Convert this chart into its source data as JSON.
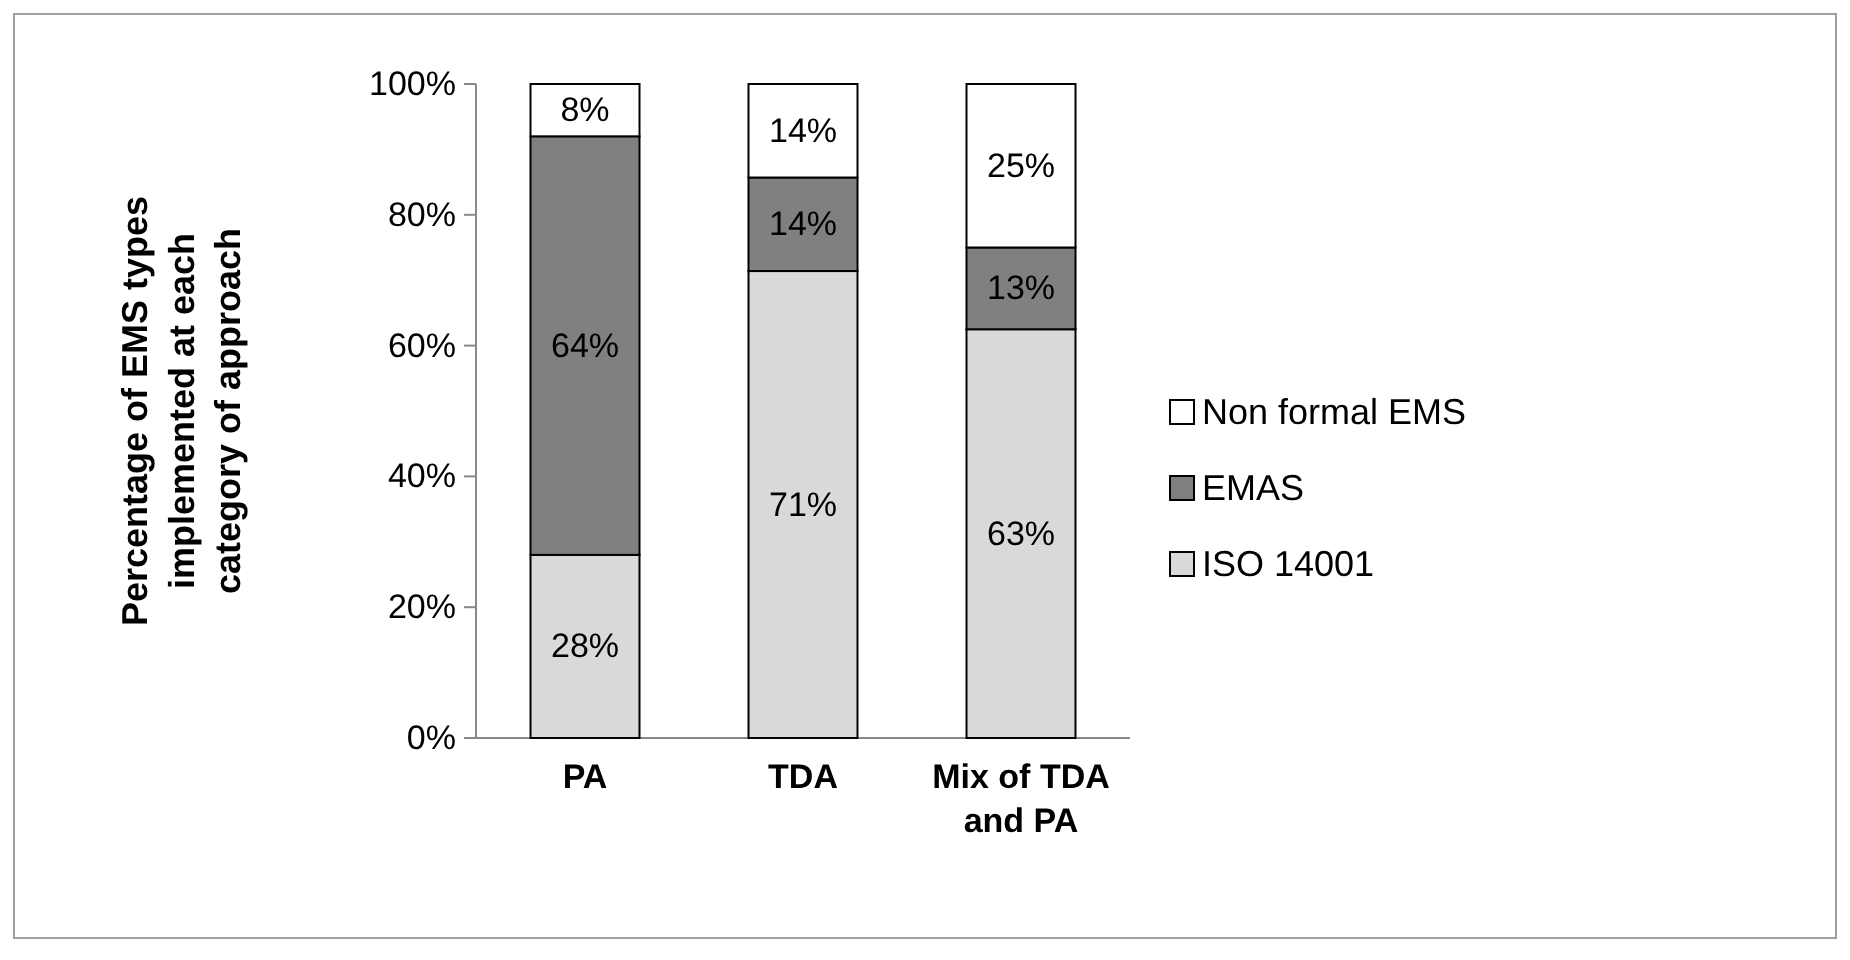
{
  "chart_data": {
    "type": "bar",
    "stacked": true,
    "ylabel": "Percentage of EMS types implemented at each category of approach",
    "categories": [
      "PA",
      "TDA",
      "Mix of TDA and PA"
    ],
    "series": [
      {
        "name": "ISO 14001",
        "color": "#d9d9d9",
        "values": [
          28,
          71.4,
          62.5
        ],
        "value_labels": [
          "28%",
          "71%",
          "63%"
        ]
      },
      {
        "name": "EMAS",
        "color": "#808080",
        "values": [
          64,
          14.3,
          12.5
        ],
        "value_labels": [
          "64%",
          "14%",
          "13%"
        ]
      },
      {
        "name": "Non formal EMS",
        "color": "#ffffff",
        "values": [
          8,
          14.3,
          25
        ],
        "value_labels": [
          "8%",
          "14%",
          "25%"
        ]
      }
    ],
    "ylim": [
      0,
      100
    ],
    "yticks": [
      {
        "value": 0,
        "label": "0%"
      },
      {
        "value": 20,
        "label": "20%"
      },
      {
        "value": 40,
        "label": "40%"
      },
      {
        "value": 60,
        "label": "60%"
      },
      {
        "value": 80,
        "label": "80%"
      },
      {
        "value": 100,
        "label": "100%"
      }
    ],
    "grid": false,
    "legend": "right"
  }
}
